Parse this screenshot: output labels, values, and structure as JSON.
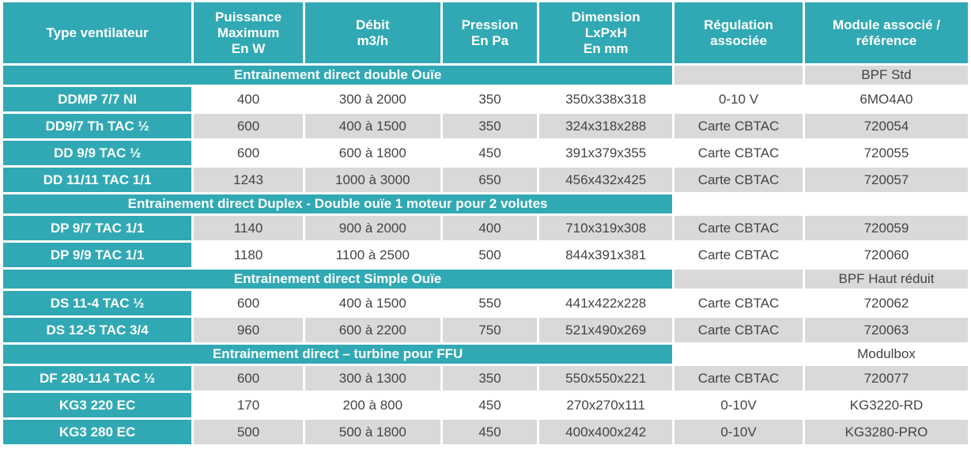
{
  "headers": [
    [
      "Type ventilateur"
    ],
    [
      "Puissance",
      "Maximum",
      "En W"
    ],
    [
      "Débit",
      "m3/h"
    ],
    [
      "Pression",
      "En Pa"
    ],
    [
      "Dimension",
      "LxPxH",
      "En mm"
    ],
    [
      "Régulation",
      "associée"
    ],
    [
      "Module associé /",
      "référence"
    ]
  ],
  "groups": [
    {
      "title": "Entrainement direct double Ouïe",
      "note": "BPF Std",
      "rows": [
        [
          "DDMP 7/7 NI",
          "400",
          "300 à 2000",
          "350",
          "350x338x318",
          "0-10 V",
          "6MO4A0"
        ],
        [
          "DD9/7 Th TAC ½",
          "600",
          "400 à 1500",
          "350",
          "324x318x288",
          "Carte CBTAC",
          "720054"
        ],
        [
          "DD 9/9 TAC ½",
          "600",
          "600 à 1800",
          "450",
          "391x379x355",
          "Carte CBTAC",
          "720055"
        ],
        [
          "DD 11/11 TAC 1/1",
          "1243",
          "1000 à 3000",
          "650",
          "456x432x425",
          "Carte CBTAC",
          "720057"
        ]
      ]
    },
    {
      "title": "Entrainement direct Duplex - Double ouïe 1 moteur pour 2 volutes",
      "note": "",
      "rows": [
        [
          "DP 9/7 TAC 1/1",
          "1140",
          "900 à 2000",
          "400",
          "710x319x308",
          "Carte CBTAC",
          "720059"
        ],
        [
          "DP 9/9 TAC 1/1",
          "1180",
          "1100 à 2500",
          "500",
          "844x391x381",
          "Carte CBTAC",
          "720060"
        ]
      ]
    },
    {
      "title": "Entrainement direct Simple Ouïe",
      "note": "BPF Haut réduit",
      "rows": [
        [
          "DS 11-4 TAC ½",
          "600",
          "400 à 1500",
          "550",
          "441x422x228",
          "Carte CBTAC",
          "720062"
        ],
        [
          "DS 12-5 TAC 3/4",
          "960",
          "600 à 2200",
          "750",
          "521x490x269",
          "Carte CBTAC",
          "720063"
        ]
      ]
    },
    {
      "title": "Entrainement direct – turbine  pour FFU",
      "note": "Modulbox",
      "rows": [
        [
          "DF 280-114 TAC ½",
          "600",
          "300 à 1300",
          "350",
          "550x550x221",
          "Carte CBTAC",
          "720077"
        ],
        [
          "KG3 220 EC",
          "170",
          "200 à 800",
          "450",
          "270x270x111",
          "0-10V",
          "KG3220-RD"
        ],
        [
          "KG3 280 EC",
          "500",
          "500 à 1800",
          "450",
          "400x400x242",
          "0-10V",
          "KG3280-PRO"
        ]
      ]
    }
  ]
}
